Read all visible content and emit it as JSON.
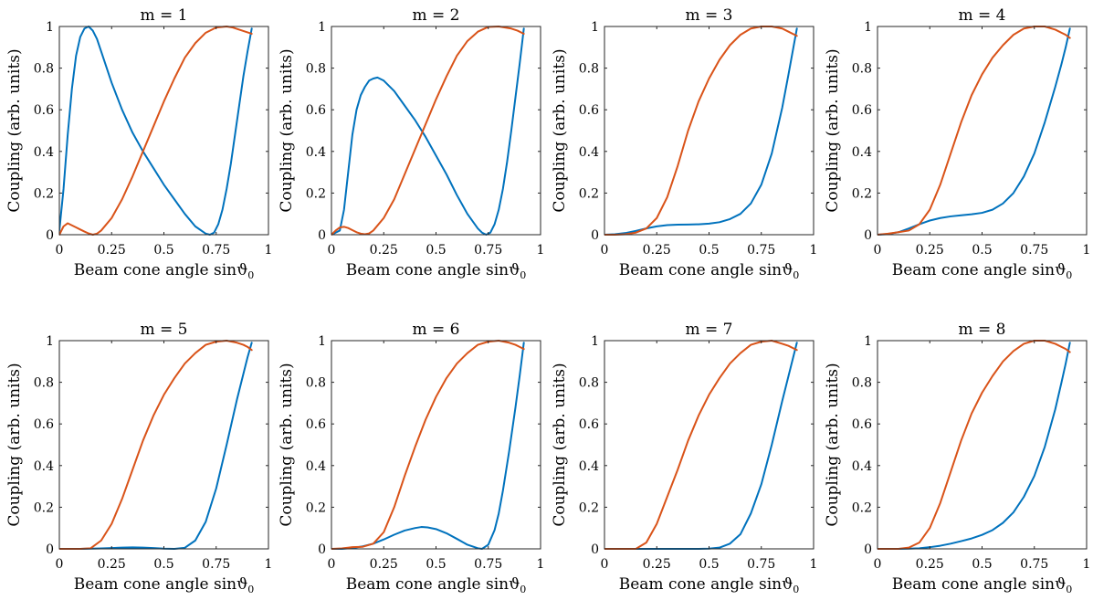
{
  "figure": {
    "xlabel": "Beam cone angle sinϑ",
    "xlabel_subscript": "0",
    "ylabel": "Coupling (arb. units)"
  },
  "colors": {
    "blue": "#0072BD",
    "orange": "#D95319"
  },
  "chart_data": [
    {
      "type": "line",
      "title": "m = 1",
      "xlim": [
        0,
        1
      ],
      "ylim": [
        0,
        1
      ],
      "xticks": [
        0,
        0.25,
        0.5,
        0.75,
        1
      ],
      "xtick_labels": [
        "0",
        "0.25",
        "0.5",
        "0.75",
        "1"
      ],
      "yticks": [
        0,
        0.2,
        0.4,
        0.6,
        0.8,
        1
      ],
      "ytick_labels": [
        "0",
        "0.2",
        "0.4",
        "0.6",
        "0.8",
        "1"
      ],
      "grid": false,
      "series": [
        {
          "color": "#0072BD",
          "x": [
            0,
            0.02,
            0.04,
            0.06,
            0.08,
            0.1,
            0.12,
            0.14,
            0.16,
            0.18,
            0.2,
            0.25,
            0.3,
            0.35,
            0.4,
            0.45,
            0.5,
            0.55,
            0.6,
            0.65,
            0.7,
            0.72,
            0.74,
            0.76,
            0.78,
            0.8,
            0.82,
            0.84,
            0.86,
            0.88,
            0.9,
            0.92
          ],
          "y": [
            0.02,
            0.22,
            0.48,
            0.7,
            0.86,
            0.95,
            0.99,
            1.0,
            0.98,
            0.94,
            0.88,
            0.73,
            0.6,
            0.49,
            0.4,
            0.32,
            0.24,
            0.17,
            0.1,
            0.04,
            0.005,
            0.0,
            0.01,
            0.05,
            0.12,
            0.22,
            0.34,
            0.48,
            0.62,
            0.76,
            0.88,
            0.99
          ]
        },
        {
          "color": "#D95319",
          "x": [
            0,
            0.02,
            0.04,
            0.06,
            0.08,
            0.1,
            0.12,
            0.14,
            0.16,
            0.18,
            0.2,
            0.25,
            0.3,
            0.35,
            0.4,
            0.45,
            0.5,
            0.55,
            0.6,
            0.65,
            0.7,
            0.75,
            0.8,
            0.83,
            0.86,
            0.89,
            0.92
          ],
          "y": [
            0,
            0.04,
            0.055,
            0.045,
            0.035,
            0.025,
            0.015,
            0.006,
            0.0,
            0.005,
            0.02,
            0.08,
            0.17,
            0.28,
            0.4,
            0.52,
            0.64,
            0.75,
            0.85,
            0.92,
            0.97,
            0.995,
            1.0,
            0.995,
            0.985,
            0.975,
            0.965
          ]
        }
      ]
    },
    {
      "type": "line",
      "title": "m = 2",
      "xlim": [
        0,
        1
      ],
      "ylim": [
        0,
        1
      ],
      "xticks": [
        0,
        0.25,
        0.5,
        0.75,
        1
      ],
      "xtick_labels": [
        "0",
        "0.25",
        "0.5",
        "0.75",
        "1"
      ],
      "yticks": [
        0,
        0.2,
        0.4,
        0.6,
        0.8,
        1
      ],
      "ytick_labels": [
        "0",
        "0.2",
        "0.4",
        "0.6",
        "0.8",
        "1"
      ],
      "grid": false,
      "series": [
        {
          "color": "#0072BD",
          "x": [
            0,
            0.04,
            0.06,
            0.08,
            0.1,
            0.12,
            0.14,
            0.16,
            0.18,
            0.2,
            0.22,
            0.25,
            0.3,
            0.35,
            0.4,
            0.45,
            0.5,
            0.55,
            0.6,
            0.65,
            0.7,
            0.72,
            0.74,
            0.76,
            0.78,
            0.8,
            0.82,
            0.84,
            0.86,
            0.88,
            0.9,
            0.92
          ],
          "y": [
            0,
            0.02,
            0.12,
            0.3,
            0.48,
            0.6,
            0.67,
            0.71,
            0.74,
            0.75,
            0.755,
            0.74,
            0.69,
            0.62,
            0.55,
            0.47,
            0.38,
            0.29,
            0.19,
            0.1,
            0.03,
            0.01,
            0.0,
            0.01,
            0.05,
            0.12,
            0.22,
            0.35,
            0.5,
            0.66,
            0.82,
            0.99
          ]
        },
        {
          "color": "#D95319",
          "x": [
            0,
            0.02,
            0.04,
            0.06,
            0.08,
            0.1,
            0.12,
            0.14,
            0.16,
            0.18,
            0.2,
            0.25,
            0.3,
            0.35,
            0.4,
            0.45,
            0.5,
            0.55,
            0.6,
            0.65,
            0.7,
            0.75,
            0.8,
            0.83,
            0.86,
            0.89,
            0.92
          ],
          "y": [
            0,
            0.02,
            0.035,
            0.038,
            0.032,
            0.022,
            0.012,
            0.005,
            0.002,
            0.006,
            0.02,
            0.08,
            0.17,
            0.29,
            0.41,
            0.53,
            0.65,
            0.76,
            0.86,
            0.93,
            0.975,
            0.998,
            1.0,
            0.995,
            0.99,
            0.98,
            0.965
          ]
        }
      ]
    },
    {
      "type": "line",
      "title": "m = 3",
      "xlim": [
        0,
        1
      ],
      "ylim": [
        0,
        1
      ],
      "xticks": [
        0,
        0.25,
        0.5,
        0.75,
        1
      ],
      "xtick_labels": [
        "0",
        "0.25",
        "0.5",
        "0.75",
        "1"
      ],
      "yticks": [
        0,
        0.2,
        0.4,
        0.6,
        0.8,
        1
      ],
      "ytick_labels": [
        "0",
        "0.2",
        "0.4",
        "0.6",
        "0.8",
        "1"
      ],
      "grid": false,
      "series": [
        {
          "color": "#0072BD",
          "x": [
            0,
            0.05,
            0.1,
            0.15,
            0.2,
            0.25,
            0.3,
            0.35,
            0.4,
            0.45,
            0.5,
            0.55,
            0.6,
            0.65,
            0.7,
            0.75,
            0.8,
            0.85,
            0.88,
            0.9,
            0.92
          ],
          "y": [
            0,
            0.002,
            0.008,
            0.018,
            0.03,
            0.04,
            0.046,
            0.048,
            0.049,
            0.05,
            0.053,
            0.06,
            0.075,
            0.1,
            0.15,
            0.24,
            0.39,
            0.61,
            0.77,
            0.88,
            0.99
          ]
        },
        {
          "color": "#D95319",
          "x": [
            0,
            0.05,
            0.1,
            0.15,
            0.2,
            0.25,
            0.3,
            0.35,
            0.4,
            0.45,
            0.5,
            0.55,
            0.6,
            0.65,
            0.7,
            0.75,
            0.8,
            0.85,
            0.88,
            0.9,
            0.92
          ],
          "y": [
            0,
            0.0,
            0.002,
            0.01,
            0.03,
            0.08,
            0.18,
            0.33,
            0.5,
            0.64,
            0.75,
            0.84,
            0.91,
            0.96,
            0.99,
            1.0,
            1.0,
            0.99,
            0.975,
            0.965,
            0.955
          ]
        }
      ]
    },
    {
      "type": "line",
      "title": "m = 4",
      "xlim": [
        0,
        1
      ],
      "ylim": [
        0,
        1
      ],
      "xticks": [
        0,
        0.25,
        0.5,
        0.75,
        1
      ],
      "xtick_labels": [
        "0",
        "0.25",
        "0.5",
        "0.75",
        "1"
      ],
      "yticks": [
        0,
        0.2,
        0.4,
        0.6,
        0.8,
        1
      ],
      "ytick_labels": [
        "0",
        "0.2",
        "0.4",
        "0.6",
        "0.8",
        "1"
      ],
      "grid": false,
      "series": [
        {
          "color": "#0072BD",
          "x": [
            0,
            0.05,
            0.1,
            0.15,
            0.2,
            0.25,
            0.3,
            0.35,
            0.4,
            0.45,
            0.5,
            0.55,
            0.6,
            0.65,
            0.7,
            0.75,
            0.8,
            0.85,
            0.88,
            0.9,
            0.92
          ],
          "y": [
            0,
            0.003,
            0.012,
            0.03,
            0.05,
            0.068,
            0.08,
            0.088,
            0.093,
            0.098,
            0.105,
            0.12,
            0.15,
            0.2,
            0.28,
            0.39,
            0.54,
            0.71,
            0.82,
            0.9,
            0.99
          ]
        },
        {
          "color": "#D95319",
          "x": [
            0,
            0.05,
            0.1,
            0.15,
            0.2,
            0.25,
            0.3,
            0.35,
            0.4,
            0.45,
            0.5,
            0.55,
            0.6,
            0.65,
            0.7,
            0.75,
            0.8,
            0.85,
            0.88,
            0.9,
            0.92
          ],
          "y": [
            0,
            0.005,
            0.012,
            0.02,
            0.05,
            0.12,
            0.24,
            0.39,
            0.54,
            0.67,
            0.77,
            0.85,
            0.91,
            0.96,
            0.99,
            1.0,
            1.0,
            0.985,
            0.97,
            0.96,
            0.945
          ]
        }
      ]
    },
    {
      "type": "line",
      "title": "m = 5",
      "xlim": [
        0,
        1
      ],
      "ylim": [
        0,
        1
      ],
      "xticks": [
        0,
        0.25,
        0.5,
        0.75,
        1
      ],
      "xtick_labels": [
        "0",
        "0.25",
        "0.5",
        "0.75",
        "1"
      ],
      "yticks": [
        0,
        0.2,
        0.4,
        0.6,
        0.8,
        1
      ],
      "ytick_labels": [
        "0",
        "0.2",
        "0.4",
        "0.6",
        "0.8",
        "1"
      ],
      "grid": false,
      "series": [
        {
          "color": "#0072BD",
          "x": [
            0,
            0.05,
            0.1,
            0.15,
            0.2,
            0.25,
            0.3,
            0.35,
            0.4,
            0.45,
            0.5,
            0.55,
            0.6,
            0.65,
            0.7,
            0.75,
            0.8,
            0.85,
            0.88,
            0.9,
            0.92
          ],
          "y": [
            0,
            0.0,
            0.0,
            0.001,
            0.002,
            0.004,
            0.006,
            0.007,
            0.006,
            0.004,
            0.001,
            0.0,
            0.005,
            0.04,
            0.13,
            0.29,
            0.5,
            0.72,
            0.84,
            0.92,
            0.99
          ]
        },
        {
          "color": "#D95319",
          "x": [
            0,
            0.05,
            0.1,
            0.15,
            0.2,
            0.25,
            0.3,
            0.35,
            0.4,
            0.45,
            0.5,
            0.55,
            0.6,
            0.65,
            0.7,
            0.75,
            0.8,
            0.85,
            0.88,
            0.9,
            0.92
          ],
          "y": [
            0,
            0.0,
            0.0,
            0.003,
            0.04,
            0.12,
            0.24,
            0.38,
            0.52,
            0.64,
            0.74,
            0.82,
            0.89,
            0.94,
            0.98,
            0.995,
            1.0,
            0.99,
            0.98,
            0.97,
            0.955
          ]
        }
      ]
    },
    {
      "type": "line",
      "title": "m = 6",
      "xlim": [
        0,
        1
      ],
      "ylim": [
        0,
        1
      ],
      "xticks": [
        0,
        0.25,
        0.5,
        0.75,
        1
      ],
      "xtick_labels": [
        "0",
        "0.25",
        "0.5",
        "0.75",
        "1"
      ],
      "yticks": [
        0,
        0.2,
        0.4,
        0.6,
        0.8,
        1
      ],
      "ytick_labels": [
        "0",
        "0.2",
        "0.4",
        "0.6",
        "0.8",
        "1"
      ],
      "grid": false,
      "series": [
        {
          "color": "#0072BD",
          "x": [
            0,
            0.05,
            0.1,
            0.15,
            0.2,
            0.25,
            0.3,
            0.35,
            0.4,
            0.43,
            0.46,
            0.5,
            0.55,
            0.6,
            0.65,
            0.7,
            0.72,
            0.75,
            0.78,
            0.8,
            0.82,
            0.85,
            0.88,
            0.9,
            0.92
          ],
          "y": [
            0,
            0.0,
            0.004,
            0.012,
            0.025,
            0.045,
            0.068,
            0.088,
            0.1,
            0.105,
            0.103,
            0.095,
            0.075,
            0.048,
            0.02,
            0.003,
            0.0,
            0.02,
            0.09,
            0.17,
            0.28,
            0.47,
            0.68,
            0.83,
            0.99
          ]
        },
        {
          "color": "#D95319",
          "x": [
            0,
            0.05,
            0.1,
            0.15,
            0.2,
            0.25,
            0.3,
            0.35,
            0.4,
            0.45,
            0.5,
            0.55,
            0.6,
            0.65,
            0.7,
            0.75,
            0.8,
            0.85,
            0.88,
            0.9,
            0.92
          ],
          "y": [
            0,
            0.002,
            0.008,
            0.01,
            0.025,
            0.08,
            0.2,
            0.35,
            0.49,
            0.62,
            0.73,
            0.82,
            0.89,
            0.94,
            0.98,
            0.995,
            1.0,
            0.99,
            0.98,
            0.97,
            0.96
          ]
        }
      ]
    },
    {
      "type": "line",
      "title": "m = 7",
      "xlim": [
        0,
        1
      ],
      "ylim": [
        0,
        1
      ],
      "xticks": [
        0,
        0.25,
        0.5,
        0.75,
        1
      ],
      "xtick_labels": [
        "0",
        "0.25",
        "0.5",
        "0.75",
        "1"
      ],
      "yticks": [
        0,
        0.2,
        0.4,
        0.6,
        0.8,
        1
      ],
      "ytick_labels": [
        "0",
        "0.2",
        "0.4",
        "0.6",
        "0.8",
        "1"
      ],
      "grid": false,
      "series": [
        {
          "color": "#0072BD",
          "x": [
            0,
            0.1,
            0.2,
            0.3,
            0.4,
            0.45,
            0.5,
            0.55,
            0.6,
            0.65,
            0.7,
            0.75,
            0.8,
            0.85,
            0.88,
            0.9,
            0.92
          ],
          "y": [
            0,
            0.0,
            0.0,
            0.0,
            0.0,
            0.0,
            0.001,
            0.006,
            0.025,
            0.07,
            0.17,
            0.31,
            0.5,
            0.71,
            0.83,
            0.91,
            0.99
          ]
        },
        {
          "color": "#D95319",
          "x": [
            0,
            0.05,
            0.1,
            0.15,
            0.2,
            0.25,
            0.3,
            0.35,
            0.4,
            0.45,
            0.5,
            0.55,
            0.6,
            0.65,
            0.7,
            0.75,
            0.8,
            0.85,
            0.88,
            0.9,
            0.92
          ],
          "y": [
            0,
            0.0,
            0.0,
            0.0,
            0.03,
            0.12,
            0.25,
            0.38,
            0.52,
            0.64,
            0.74,
            0.82,
            0.89,
            0.94,
            0.98,
            0.995,
            1.0,
            0.985,
            0.975,
            0.965,
            0.955
          ]
        }
      ]
    },
    {
      "type": "line",
      "title": "m = 8",
      "xlim": [
        0,
        1
      ],
      "ylim": [
        0,
        1
      ],
      "xticks": [
        0,
        0.25,
        0.5,
        0.75,
        1
      ],
      "xtick_labels": [
        "0",
        "0.25",
        "0.5",
        "0.75",
        "1"
      ],
      "yticks": [
        0,
        0.2,
        0.4,
        0.6,
        0.8,
        1
      ],
      "ytick_labels": [
        "0",
        "0.2",
        "0.4",
        "0.6",
        "0.8",
        "1"
      ],
      "grid": false,
      "series": [
        {
          "color": "#0072BD",
          "x": [
            0,
            0.05,
            0.1,
            0.15,
            0.2,
            0.25,
            0.3,
            0.35,
            0.4,
            0.45,
            0.5,
            0.55,
            0.6,
            0.65,
            0.7,
            0.75,
            0.8,
            0.85,
            0.88,
            0.9,
            0.92
          ],
          "y": [
            0,
            0.0,
            0.0,
            0.001,
            0.003,
            0.008,
            0.015,
            0.025,
            0.037,
            0.05,
            0.067,
            0.09,
            0.125,
            0.175,
            0.25,
            0.35,
            0.49,
            0.67,
            0.8,
            0.89,
            0.99
          ]
        },
        {
          "color": "#D95319",
          "x": [
            0,
            0.05,
            0.1,
            0.15,
            0.2,
            0.25,
            0.3,
            0.35,
            0.4,
            0.45,
            0.5,
            0.55,
            0.6,
            0.65,
            0.7,
            0.75,
            0.8,
            0.85,
            0.88,
            0.9,
            0.92
          ],
          "y": [
            0,
            0.0,
            0.0,
            0.006,
            0.03,
            0.1,
            0.22,
            0.37,
            0.52,
            0.65,
            0.75,
            0.83,
            0.9,
            0.95,
            0.985,
            1.0,
            1.0,
            0.985,
            0.97,
            0.96,
            0.945
          ]
        }
      ]
    }
  ]
}
